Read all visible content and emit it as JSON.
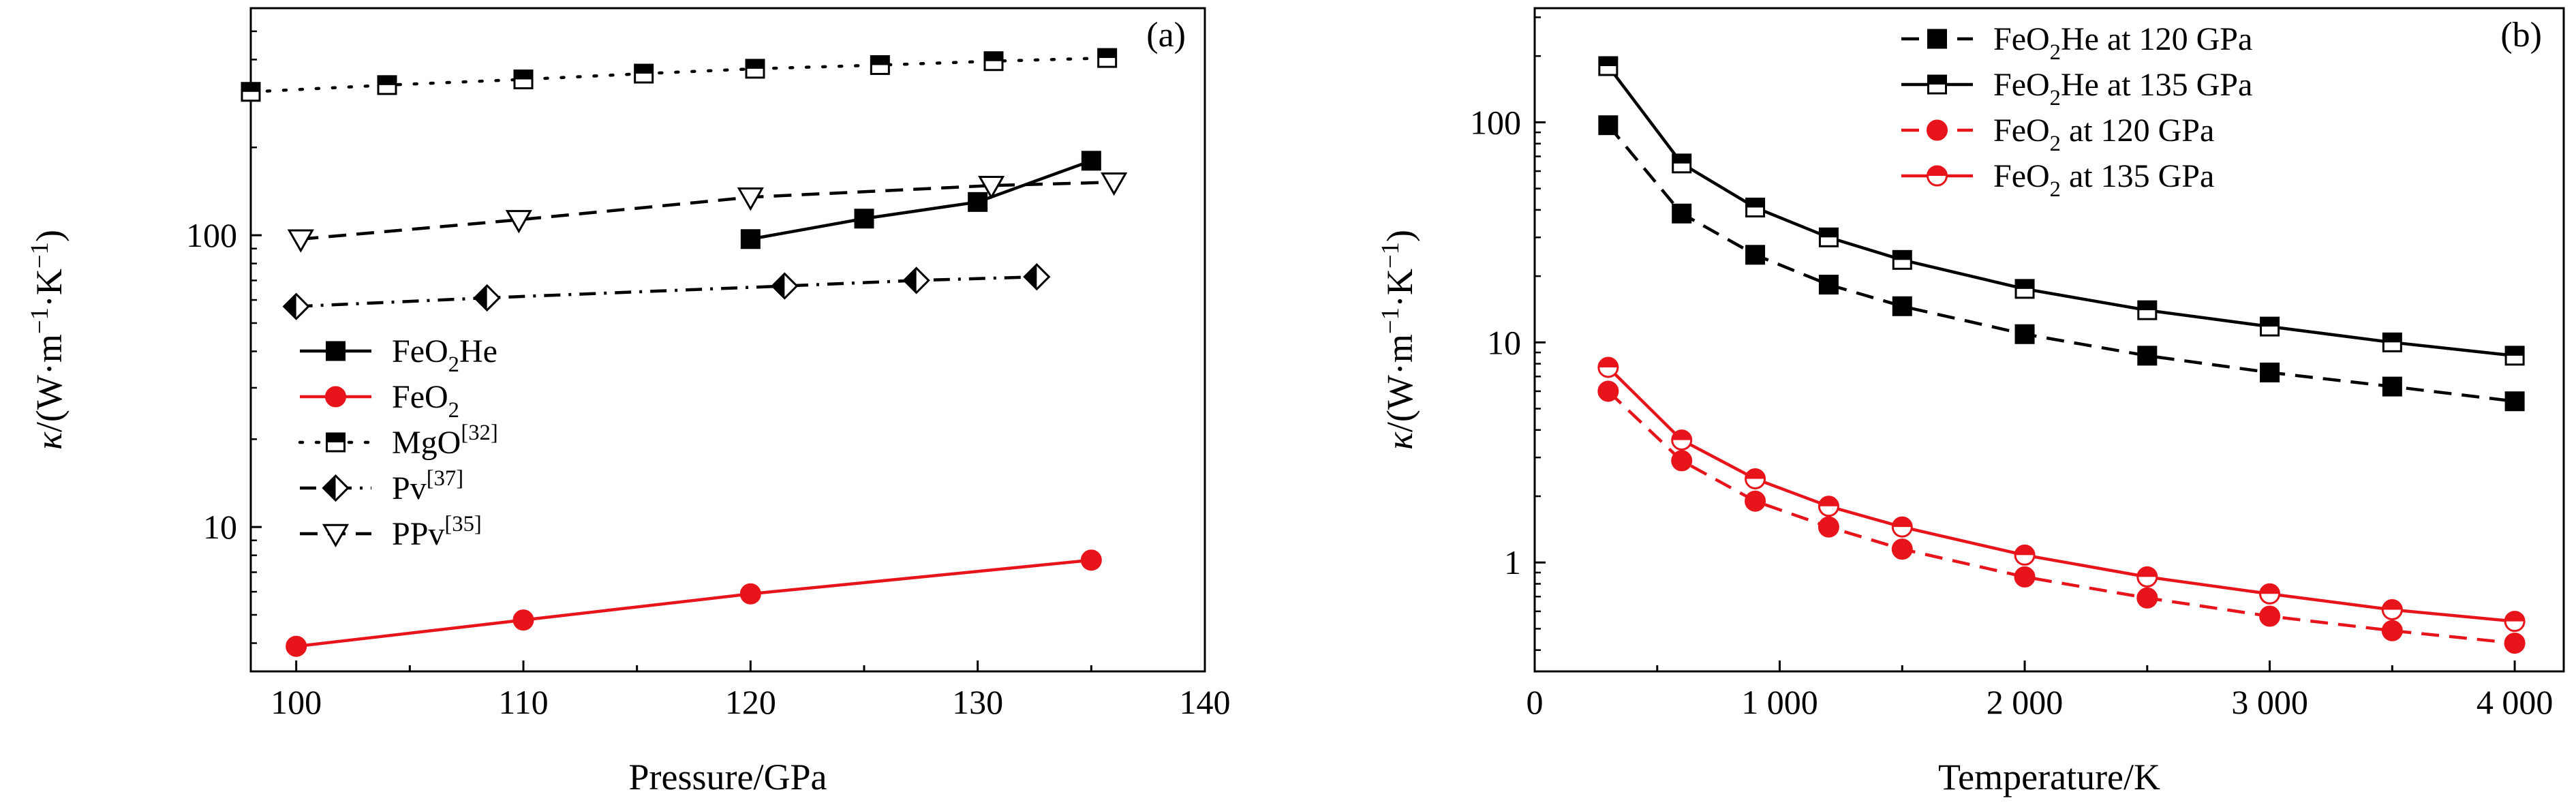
{
  "chart_data": [
    {
      "panel": "(a)",
      "type": "line",
      "xlabel": "Pressure/GPa",
      "ylabel_parts": [
        "κ",
        "/(W·m",
        "−1",
        "·K",
        "−1",
        ")"
      ],
      "xscale": "linear",
      "yscale": "log",
      "xlim": [
        98,
        140
      ],
      "ylim": [
        3.2,
        600
      ],
      "xticks": [
        100,
        110,
        120,
        130,
        140
      ],
      "xtick_labels": [
        "100",
        "110",
        "120",
        "130",
        "140"
      ],
      "yticks": [
        10,
        100
      ],
      "ytick_labels": [
        "10",
        "100"
      ],
      "grid": false,
      "legend_placement": "center-left",
      "series": [
        {
          "name": "FeO2He",
          "legend_parts": [
            [
              "FeO",
              false
            ],
            [
              "2",
              "sub"
            ],
            [
              "He",
              false
            ]
          ],
          "color": "#000000",
          "line": "solid",
          "marker": "square-filled",
          "x": [
            120,
            125,
            130,
            135
          ],
          "y": [
            97,
            114,
            130,
            180
          ]
        },
        {
          "name": "FeO2",
          "legend_parts": [
            [
              "FeO",
              false
            ],
            [
              "2",
              "sub"
            ]
          ],
          "color": "#e8141b",
          "line": "solid",
          "marker": "circle-filled",
          "x": [
            100,
            110,
            120,
            135
          ],
          "y": [
            3.9,
            4.8,
            5.9,
            7.7
          ]
        },
        {
          "name": "MgO[32]",
          "legend_parts": [
            [
              "MgO",
              false
            ],
            [
              "[32]",
              "sup"
            ]
          ],
          "color": "#000000",
          "line": "dotted",
          "marker": "square-half",
          "x": [
            98,
            104,
            110,
            115.3,
            120.2,
            125.7,
            130.7,
            135.7
          ],
          "y": [
            310,
            327,
            342,
            358,
            372,
            383,
            395,
            405
          ]
        },
        {
          "name": "Pv[37]",
          "legend_parts": [
            [
              "Pv",
              false
            ],
            [
              "[37]",
              "sup"
            ]
          ],
          "color": "#000000",
          "line": "dashdot",
          "marker": "diamond",
          "x": [
            100,
            108.4,
            121.5,
            127.3,
            132.6
          ],
          "y": [
            57,
            61,
            67,
            70,
            72
          ]
        },
        {
          "name": "PPv[35]",
          "legend_parts": [
            [
              "PPv",
              false
            ],
            [
              "[35]",
              "sup"
            ]
          ],
          "color": "#000000",
          "line": "dashed",
          "marker": "triangle-down",
          "x": [
            100.2,
            109.8,
            120,
            130.6,
            136
          ],
          "y": [
            97,
            113,
            135,
            148,
            152
          ]
        }
      ]
    },
    {
      "panel": "(b)",
      "type": "line",
      "xlabel": "Temperature/K",
      "ylabel_parts": [
        "κ",
        "/(W·m",
        "−1",
        "·K",
        "−1",
        ")"
      ],
      "xscale": "linear",
      "yscale": "log",
      "xlim": [
        0,
        4200
      ],
      "ylim": [
        0.32,
        330
      ],
      "xticks": [
        0,
        1000,
        2000,
        3000,
        4000
      ],
      "xtick_labels": [
        "0",
        "1 000",
        "2 000",
        "3 000",
        "4 000"
      ],
      "yticks": [
        1,
        10,
        100
      ],
      "ytick_labels": [
        "1",
        "10",
        "100"
      ],
      "grid": false,
      "legend_placement": "top-right",
      "series": [
        {
          "name": "FeO2He at 120 GPa",
          "legend_parts": [
            [
              "FeO",
              false
            ],
            [
              "2",
              "sub"
            ],
            [
              "He at 120 GPa",
              false
            ]
          ],
          "color": "#000000",
          "line": "dashed",
          "marker": "square-filled",
          "x": [
            300,
            600,
            900,
            1200,
            1500,
            2000,
            2500,
            3000,
            3500,
            4000
          ],
          "y": [
            97,
            38.5,
            25,
            18.3,
            14.6,
            10.9,
            8.7,
            7.3,
            6.3,
            5.4
          ]
        },
        {
          "name": "FeO2He at 135 GPa",
          "legend_parts": [
            [
              "FeO",
              false
            ],
            [
              "2",
              "sub"
            ],
            [
              "He at 135 GPa",
              false
            ]
          ],
          "color": "#000000",
          "line": "solid",
          "marker": "square-half",
          "x": [
            300,
            600,
            900,
            1200,
            1500,
            2000,
            2500,
            3000,
            3500,
            4000
          ],
          "y": [
            180,
            65,
            41,
            30,
            23.7,
            17.5,
            14,
            11.8,
            10,
            8.7
          ]
        },
        {
          "name": "FeO2 at 120 GPa",
          "legend_parts": [
            [
              "FeO",
              false
            ],
            [
              "2",
              "sub"
            ],
            [
              " at 120 GPa",
              false
            ]
          ],
          "color": "#e8141b",
          "line": "dashed",
          "marker": "circle-filled",
          "x": [
            300,
            600,
            900,
            1200,
            1500,
            2000,
            2500,
            3000,
            3500,
            4000
          ],
          "y": [
            6,
            2.9,
            1.9,
            1.45,
            1.15,
            0.86,
            0.69,
            0.57,
            0.49,
            0.43
          ]
        },
        {
          "name": "FeO2 at 135 GPa",
          "legend_parts": [
            [
              "FeO",
              false
            ],
            [
              "2",
              "sub"
            ],
            [
              " at 135 GPa",
              false
            ]
          ],
          "color": "#e8141b",
          "line": "solid",
          "marker": "circle-half",
          "x": [
            300,
            600,
            900,
            1200,
            1500,
            2000,
            2500,
            3000,
            3500,
            4000
          ],
          "y": [
            7.7,
            3.6,
            2.4,
            1.8,
            1.45,
            1.08,
            0.86,
            0.72,
            0.61,
            0.54
          ]
        }
      ]
    }
  ]
}
